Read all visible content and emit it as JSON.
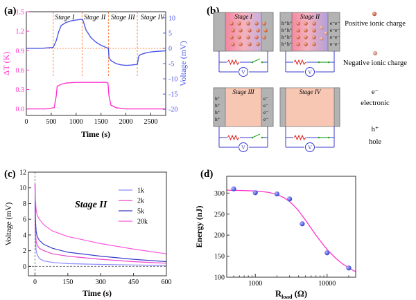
{
  "panels": {
    "a": {
      "label": "(a)"
    },
    "b": {
      "label": "(b)"
    },
    "c": {
      "label": "(c)"
    },
    "d": {
      "label": "(d)"
    }
  },
  "colors": {
    "magenta": "#ff33cc",
    "blue": "#4b57e6",
    "stage_line": "#ff8c55",
    "dashed_black": "#666666",
    "warm_fill": "#f7c7b3",
    "gray_electrode": "#b3b3b3",
    "pos_charge": "#b8432a"
  },
  "chart_data": [
    {
      "panel": "a",
      "type": "line",
      "xlabel": "Time (s)",
      "ylabel_left": "ΔT (K)",
      "ylabel_right": "Voltage (mV)",
      "xlim": [
        0,
        2800
      ],
      "ylim_left": [
        -0.1,
        1.5
      ],
      "ylim_right": [
        -22,
        12
      ],
      "xticks": [
        0,
        500,
        1000,
        1500,
        2000,
        2500
      ],
      "yticks_left": [
        0.0,
        0.3,
        0.6,
        0.9,
        1.2,
        1.5
      ],
      "yticks_left_labels": [
        "0.0",
        "0.3",
        "0.6",
        "0.9",
        "1.2",
        "1.5"
      ],
      "yticks_right": [
        -20,
        -15,
        -10,
        -5,
        0,
        5,
        10
      ],
      "stage_labels": [
        "Stage I",
        "Stage II",
        "Stage III",
        "Stage IV"
      ],
      "stage_boundaries": [
        540,
        1120,
        1650,
        2230
      ],
      "series": [
        {
          "axis": "left",
          "color": "#ff33cc",
          "x": [
            0,
            400,
            560,
            600,
            620,
            700,
            800,
            1000,
            1200,
            1400,
            1600,
            1640,
            1660,
            1700,
            1800,
            2000,
            2200,
            2400,
            2600,
            2800
          ],
          "y": [
            0.0,
            0.0,
            0.02,
            0.2,
            0.35,
            0.38,
            0.4,
            0.41,
            0.41,
            0.41,
            0.41,
            0.4,
            0.2,
            0.06,
            0.02,
            0.0,
            0.0,
            0.0,
            0.0,
            0.0
          ]
        },
        {
          "axis": "right",
          "color": "#4b57e6",
          "x": [
            0,
            300,
            540,
            600,
            650,
            700,
            800,
            900,
            1000,
            1100,
            1130,
            1150,
            1200,
            1300,
            1400,
            1500,
            1600,
            1650,
            1660,
            1700,
            1800,
            1900,
            2000,
            2100,
            2200,
            2230,
            2260,
            2300,
            2400,
            2500,
            2600,
            2800
          ],
          "y": [
            0.0,
            0.0,
            0.3,
            2.5,
            5.5,
            7.5,
            8.5,
            9.0,
            9.3,
            9.5,
            9.5,
            8.5,
            6.0,
            3.5,
            2.0,
            1.0,
            0.3,
            0.0,
            -3.0,
            -4.0,
            -5.0,
            -5.4,
            -5.6,
            -5.5,
            -5.3,
            -5.2,
            -2.5,
            -2.0,
            -1.5,
            -1.2,
            -1.0,
            -0.8
          ]
        }
      ],
      "dotted_reference": {
        "axis": "right",
        "y": 0
      }
    },
    {
      "panel": "c",
      "type": "line",
      "title": "Stage II",
      "xlabel": "Time (s)",
      "ylabel": "Voltage (mV)",
      "xlim": [
        -30,
        600
      ],
      "ylim": [
        -1.2,
        12
      ],
      "xticks": [
        0,
        150,
        300,
        450,
        600
      ],
      "yticks": [
        0,
        2,
        4,
        6,
        8,
        10,
        12
      ],
      "legend_position": "top-right",
      "series": [
        {
          "name": "1k",
          "color": "#8a8aff",
          "x": [
            0,
            2,
            5,
            10,
            20,
            40,
            80,
            150,
            300,
            450,
            600
          ],
          "y": [
            10.5,
            3.5,
            2.0,
            1.5,
            1.0,
            0.7,
            0.5,
            0.35,
            0.25,
            0.18,
            0.12
          ]
        },
        {
          "name": "2k",
          "color": "#ee44cc",
          "x": [
            0,
            2,
            5,
            10,
            20,
            40,
            80,
            150,
            300,
            450,
            600
          ],
          "y": [
            10.5,
            4.5,
            3.2,
            2.7,
            2.3,
            2.0,
            1.6,
            1.3,
            0.9,
            0.6,
            0.4
          ]
        },
        {
          "name": "5k",
          "color": "#3a3acc",
          "x": [
            0,
            2,
            5,
            10,
            20,
            40,
            80,
            150,
            300,
            450,
            600
          ],
          "y": [
            10.5,
            6.0,
            4.5,
            3.8,
            3.3,
            2.8,
            2.3,
            1.8,
            1.3,
            0.9,
            0.6
          ]
        },
        {
          "name": "20k",
          "color": "#ff55dd",
          "x": [
            0,
            2,
            5,
            10,
            20,
            40,
            80,
            150,
            300,
            450,
            600
          ],
          "y": [
            10.5,
            8.5,
            7.2,
            6.5,
            6.0,
            5.3,
            4.5,
            3.8,
            2.9,
            2.2,
            1.6
          ]
        }
      ],
      "dashed_reference": {
        "x": 0,
        "y": 0
      }
    },
    {
      "panel": "d",
      "type": "scatter",
      "xlabel": "R",
      "xlabel_sub": "load",
      "xlabel_unit": " (Ω)",
      "ylabel": "Energy (nJ)",
      "xscale": "log",
      "xlim": [
        400,
        25000
      ],
      "ylim": [
        100,
        340
      ],
      "xticks": [
        1000,
        10000
      ],
      "xtick_labels": [
        "1000",
        "10000"
      ],
      "yticks": [
        100,
        150,
        200,
        250,
        300
      ],
      "points": {
        "color": "#2a34c8",
        "x": [
          500,
          1000,
          2000,
          3000,
          4500,
          10000,
          20000
        ],
        "y": [
          310,
          301,
          298,
          286,
          227,
          158,
          122
        ]
      },
      "fit": {
        "color": "#ff33cc",
        "x": [
          400,
          700,
          1000,
          1500,
          2000,
          2500,
          3000,
          3500,
          4000,
          5000,
          6000,
          7000,
          8000,
          10000,
          13000,
          16000,
          20000,
          25000
        ],
        "y": [
          307,
          306,
          305,
          302,
          297,
          289,
          280,
          269,
          258,
          236,
          216,
          200,
          187,
          166,
          146,
          133,
          122,
          113
        ]
      }
    }
  ],
  "diagram": {
    "cells": [
      {
        "key": "s1",
        "title": "Stage I"
      },
      {
        "key": "s2",
        "title": "Stage II"
      },
      {
        "key": "s3",
        "title": "Stage III"
      },
      {
        "key": "s4",
        "title": "Stage IV"
      }
    ],
    "hplus": "h⁺",
    "eminus": "e⁻",
    "meter": "V",
    "legend": {
      "positive": "Positive ionic charge",
      "negative": "Negative ionic charge",
      "e_symbol": "e⁻",
      "e_label": "electronic",
      "h_symbol": "h⁺",
      "h_label": "hole"
    }
  }
}
